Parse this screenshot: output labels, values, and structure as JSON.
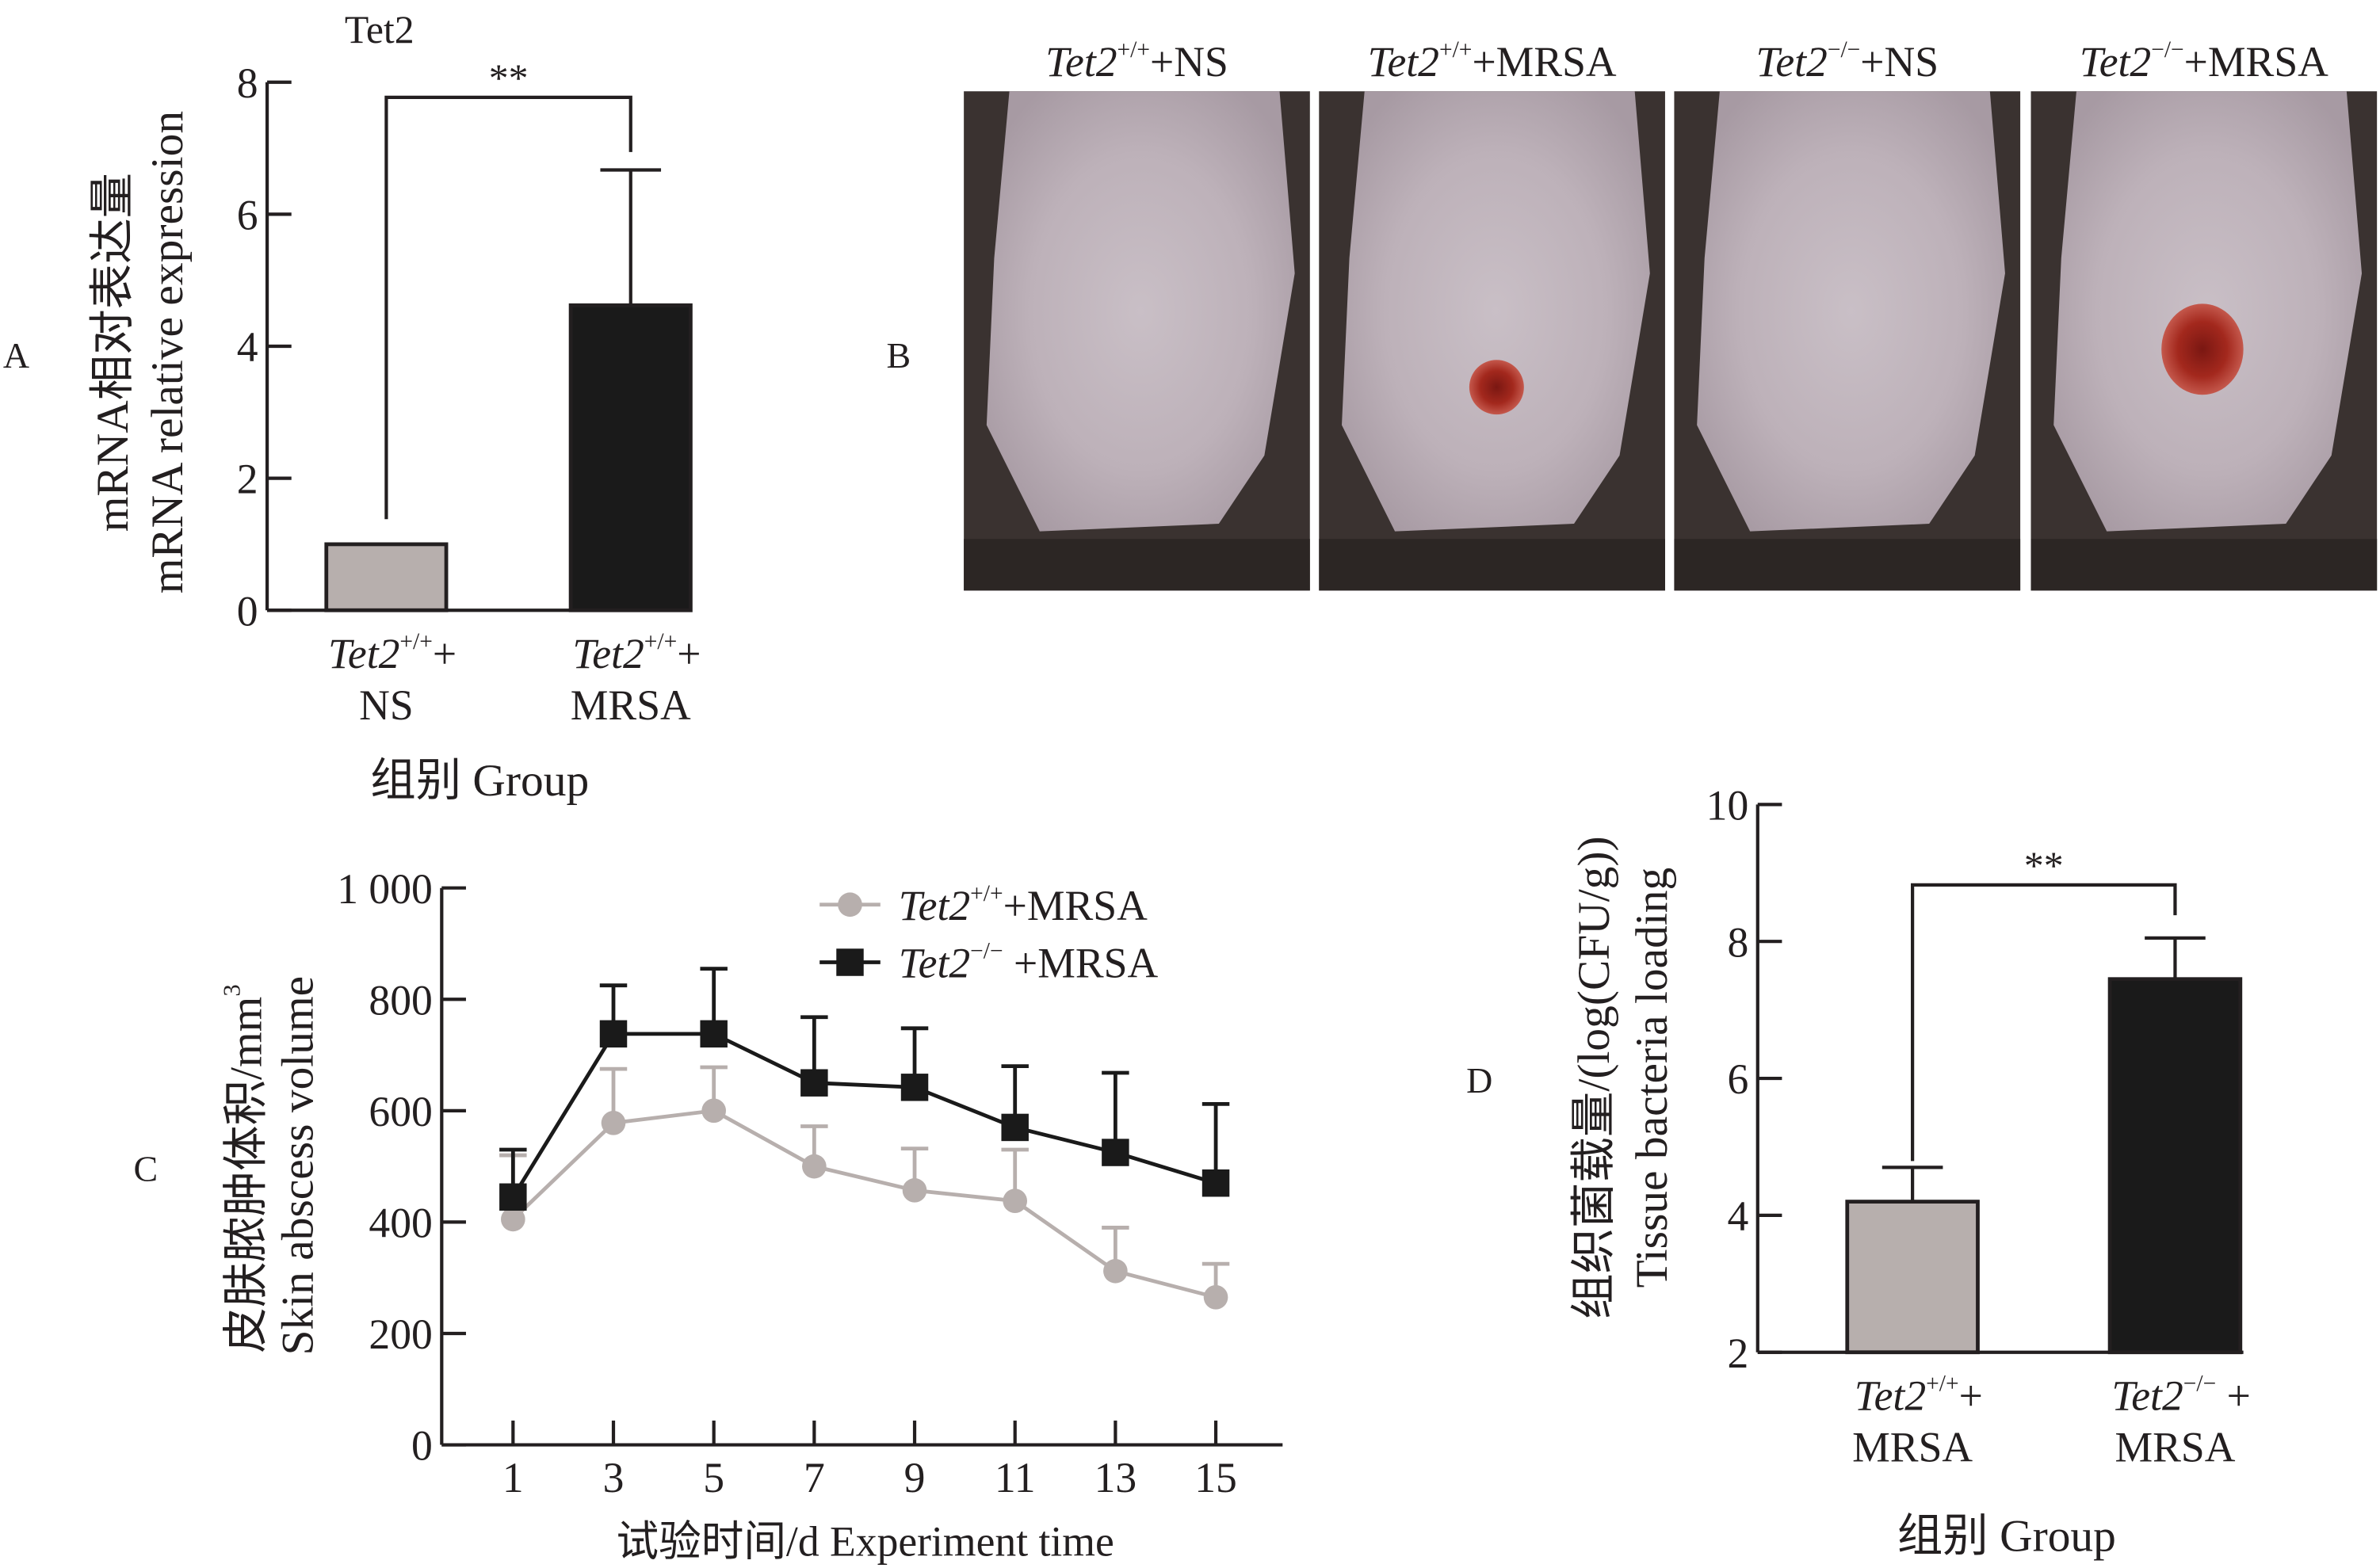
{
  "panel_labels": {
    "a": "A",
    "b": "B",
    "c": "C",
    "d": "D"
  },
  "panel_b": {
    "photos": [
      {
        "gene": "Tet2",
        "sup": "+/+",
        "rest": "+NS",
        "lesion": false
      },
      {
        "gene": "Tet2",
        "sup": "+/+",
        "rest": "+MRSA",
        "lesion": true
      },
      {
        "gene": "Tet2",
        "sup": "−/−",
        "rest": "+NS",
        "lesion": false
      },
      {
        "gene": "Tet2",
        "sup": "−/−",
        "rest": "+MRSA",
        "lesion": true
      }
    ]
  },
  "chart_data": [
    {
      "id": "A",
      "type": "bar",
      "title": "Tet2",
      "ylabel_cn": "mRNA相对表达量",
      "ylabel_en": "mRNA relative expression",
      "xlabel": "组别 Group",
      "ylim": [
        0,
        8
      ],
      "yticks": [
        0,
        2,
        4,
        6,
        8
      ],
      "categories": [
        {
          "gene": "Tet2",
          "sup": "+/+",
          "rest": "+",
          "line2": "NS"
        },
        {
          "gene": "Tet2",
          "sup": "+/+",
          "rest": "+",
          "line2": "MRSA"
        }
      ],
      "values": [
        1.0,
        4.62
      ],
      "error_upper": [
        null,
        6.67
      ],
      "colors": [
        "#b7afad",
        "#1a1a1a"
      ],
      "significance": "**"
    },
    {
      "id": "C",
      "type": "line",
      "ylabel_cn": "皮肤脓肿体积/mm",
      "ylabel_unit_sup": "3",
      "ylabel_en": "Skin abscess volume",
      "xlabel": "试验时间/d  Experiment time",
      "ylim": [
        0,
        1000
      ],
      "yticks": [
        "0",
        "200",
        "400",
        "600",
        "800",
        "1 000"
      ],
      "x": [
        1,
        3,
        5,
        7,
        9,
        11,
        13,
        15
      ],
      "legend": "top-right",
      "series": [
        {
          "gene": "Tet2",
          "sup": "+/+",
          "rest": "+MRSA",
          "marker": "circle",
          "color": "#b7afad",
          "values": [
            405,
            578,
            600,
            500,
            457,
            438,
            312,
            265
          ],
          "error_upper": [
            520,
            675,
            678,
            572,
            532,
            530,
            390,
            325
          ]
        },
        {
          "gene": "Tet2",
          "sup": "−/−",
          "rest": " +MRSA",
          "marker": "square",
          "color": "#1a1a1a",
          "values": [
            445,
            738,
            738,
            650,
            642,
            570,
            525,
            470
          ],
          "error_upper": [
            530,
            825,
            855,
            768,
            748,
            680,
            668,
            612
          ]
        }
      ]
    },
    {
      "id": "D",
      "type": "bar",
      "ylabel_cn": "组织菌载量/(log(CFU/g))",
      "ylabel_en": "Tissue bacteria loading",
      "xlabel": "组别 Group",
      "ylim": [
        2,
        10
      ],
      "yticks": [
        2,
        4,
        6,
        8,
        10
      ],
      "categories": [
        {
          "gene": "Tet2",
          "sup": "+/+",
          "rest": "+",
          "line2": "MRSA"
        },
        {
          "gene": "Tet2",
          "sup": "−/−",
          "rest": " +",
          "line2": "MRSA"
        }
      ],
      "values": [
        4.2,
        7.45
      ],
      "error_upper": [
        4.7,
        8.05
      ],
      "colors": [
        "#b7afad",
        "#1a1a1a"
      ],
      "significance": "**"
    }
  ]
}
